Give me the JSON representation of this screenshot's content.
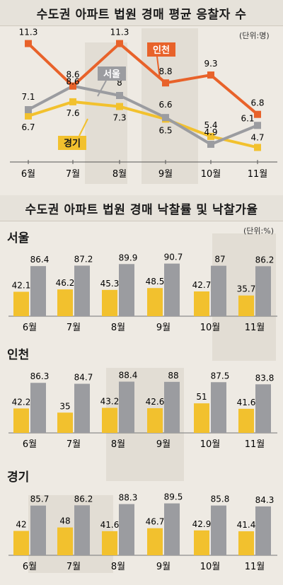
{
  "colors": {
    "incheon": "#e8622a",
    "seoul": "#9b9ca0",
    "gyeonggi": "#f2c12e",
    "bar_rate": "#f2c12e",
    "bar_price": "#9b9ca0"
  },
  "chart_data": [
    {
      "type": "line",
      "title": "수도권 아파트 법원 경매 평균 응찰자 수",
      "unit": "(단위:명)",
      "categories": [
        "6월",
        "7월",
        "8월",
        "9월",
        "10월",
        "11월"
      ],
      "series": [
        {
          "name": "인천",
          "values": [
            11.3,
            8.6,
            11.3,
            8.8,
            9.3,
            6.8
          ]
        },
        {
          "name": "서울",
          "values": [
            7.1,
            8.6,
            8,
            6.6,
            4.9,
            6.1
          ]
        },
        {
          "name": "경기",
          "values": [
            6.7,
            7.6,
            7.3,
            6.5,
            5.4,
            4.7
          ]
        }
      ],
      "ylim": [
        4,
        12
      ]
    },
    {
      "type": "bar",
      "title": "수도권 아파트 법원 경매 낙찰률 및 낙찰가율",
      "unit": "(단위:%)",
      "categories": [
        "6월",
        "7월",
        "8월",
        "9월",
        "10월",
        "11월"
      ],
      "groups": [
        {
          "name": "서울",
          "series": [
            {
              "values": [
                42.1,
                46.2,
                45.3,
                48.5,
                42.7,
                35.7
              ]
            },
            {
              "values": [
                86.4,
                87.2,
                89.9,
                90.7,
                87,
                86.2
              ]
            }
          ]
        },
        {
          "name": "인천",
          "series": [
            {
              "values": [
                42.2,
                35,
                43.2,
                42.6,
                51,
                41.6
              ]
            },
            {
              "values": [
                86.3,
                84.7,
                88.4,
                88,
                87.5,
                83.8
              ]
            }
          ]
        },
        {
          "name": "경기",
          "series": [
            {
              "values": [
                42,
                48,
                41.6,
                46.7,
                42.9,
                41.4
              ]
            },
            {
              "values": [
                85.7,
                86.2,
                88.3,
                89.5,
                85.8,
                84.3
              ]
            }
          ]
        }
      ]
    }
  ]
}
